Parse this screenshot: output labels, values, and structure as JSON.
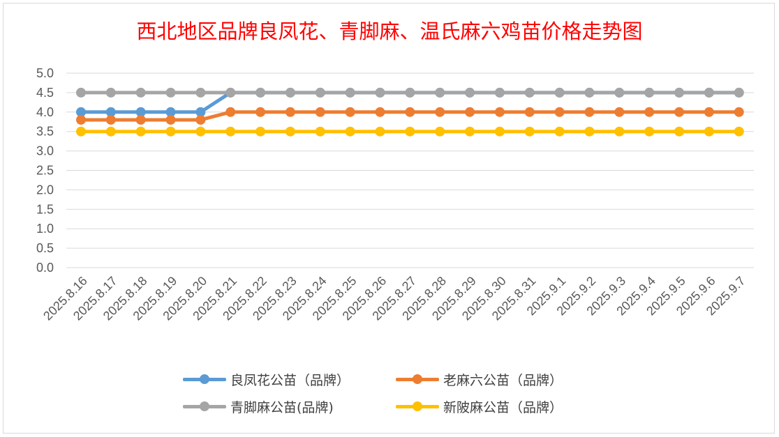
{
  "chart_data": {
    "type": "line",
    "title": "西北地区品牌良凤花、青脚麻、温氏麻六鸡苗价格走势图",
    "xlabel": "",
    "ylabel": "",
    "ylim": [
      0,
      5
    ],
    "yticks": [
      "0.0",
      "0.5",
      "1.0",
      "1.5",
      "2.0",
      "2.5",
      "3.0",
      "3.5",
      "4.0",
      "4.5",
      "5.0"
    ],
    "grid": true,
    "legend_position": "bottom",
    "categories": [
      "2025.8.16",
      "2025.8.17",
      "2025.8.18",
      "2025.8.19",
      "2025.8.20",
      "2025.8.21",
      "2025.8.22",
      "2025.8.23",
      "2025.8.24",
      "2025.8.25",
      "2025.8.26",
      "2025.8.27",
      "2025.8.28",
      "2025.8.29",
      "2025.8.30",
      "2025.8.31",
      "2025.9.1",
      "2025.9.2",
      "2025.9.3",
      "2025.9.4",
      "2025.9.5",
      "2025.9.6",
      "2025.9.7"
    ],
    "series": [
      {
        "name": "良凤花公苗（品牌）",
        "color": "#5b9bd5",
        "values": [
          4.0,
          4.0,
          4.0,
          4.0,
          4.0,
          4.5,
          4.5,
          4.5,
          4.5,
          4.5,
          4.5,
          4.5,
          4.5,
          4.5,
          4.5,
          4.5,
          4.5,
          4.5,
          4.5,
          4.5,
          4.5,
          4.5,
          4.5
        ]
      },
      {
        "name": "老麻六公苗（品牌）",
        "color": "#ed7d31",
        "values": [
          3.8,
          3.8,
          3.8,
          3.8,
          3.8,
          4.0,
          4.0,
          4.0,
          4.0,
          4.0,
          4.0,
          4.0,
          4.0,
          4.0,
          4.0,
          4.0,
          4.0,
          4.0,
          4.0,
          4.0,
          4.0,
          4.0,
          4.0
        ]
      },
      {
        "name": "青脚麻公苗(品牌)",
        "color": "#a5a5a5",
        "values": [
          4.5,
          4.5,
          4.5,
          4.5,
          4.5,
          4.5,
          4.5,
          4.5,
          4.5,
          4.5,
          4.5,
          4.5,
          4.5,
          4.5,
          4.5,
          4.5,
          4.5,
          4.5,
          4.5,
          4.5,
          4.5,
          4.5,
          4.5
        ]
      },
      {
        "name": "新陂麻公苗（品牌）",
        "color": "#ffc000",
        "values": [
          3.5,
          3.5,
          3.5,
          3.5,
          3.5,
          3.5,
          3.5,
          3.5,
          3.5,
          3.5,
          3.5,
          3.5,
          3.5,
          3.5,
          3.5,
          3.5,
          3.5,
          3.5,
          3.5,
          3.5,
          3.5,
          3.5,
          3.5
        ]
      }
    ],
    "draw_order": [
      0,
      2,
      1,
      3
    ],
    "legend_order": [
      0,
      1,
      2,
      3
    ]
  }
}
